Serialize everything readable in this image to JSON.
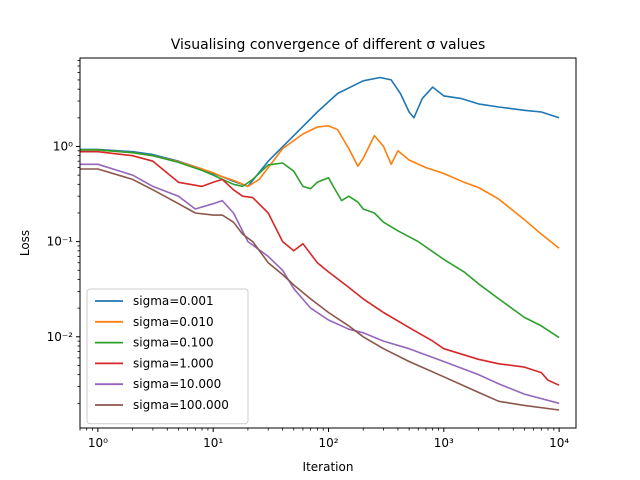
{
  "chart_data": {
    "type": "line",
    "title": "Visualising convergence of different σ values",
    "xlabel": "Iteration",
    "ylabel": "Loss",
    "x_scale": "log",
    "y_scale": "log",
    "xlim": [
      0.7,
      14000
    ],
    "ylim": [
      0.0011,
      8.5
    ],
    "xticks": [
      {
        "value": 1,
        "label": "10⁰"
      },
      {
        "value": 10,
        "label": "10¹"
      },
      {
        "value": 100,
        "label": "10²"
      },
      {
        "value": 1000,
        "label": "10³"
      },
      {
        "value": 10000,
        "label": "10⁴"
      }
    ],
    "yticks": [
      {
        "value": 0.01,
        "label": "10⁻²"
      },
      {
        "value": 0.1,
        "label": "10⁻¹"
      },
      {
        "value": 1,
        "label": "10⁰"
      }
    ],
    "grid": false,
    "legend_position": "lower-left",
    "series": [
      {
        "name": "sigma=0.001",
        "color": "#1f77b4",
        "x": [
          0.7,
          1,
          2,
          3,
          5,
          8,
          10,
          12,
          15,
          20,
          30,
          50,
          80,
          120,
          200,
          280,
          350,
          420,
          500,
          550,
          650,
          800,
          1000,
          1400,
          2000,
          3000,
          5000,
          7000,
          10000
        ],
        "y": [
          0.93,
          0.93,
          0.88,
          0.82,
          0.7,
          0.58,
          0.52,
          0.48,
          0.43,
          0.38,
          0.7,
          1.3,
          2.3,
          3.6,
          4.9,
          5.3,
          5.0,
          3.6,
          2.3,
          2.0,
          3.2,
          4.2,
          3.4,
          3.2,
          2.8,
          2.6,
          2.4,
          2.3,
          2.0
        ]
      },
      {
        "name": "sigma=0.010",
        "color": "#ff7f0e",
        "x": [
          0.7,
          1,
          2,
          3,
          5,
          8,
          10,
          12,
          15,
          20,
          25,
          30,
          40,
          60,
          80,
          100,
          120,
          150,
          180,
          200,
          250,
          300,
          350,
          400,
          500,
          700,
          1000,
          1500,
          2000,
          3000,
          5000,
          7000,
          10000
        ],
        "y": [
          0.92,
          0.92,
          0.86,
          0.8,
          0.69,
          0.58,
          0.53,
          0.48,
          0.44,
          0.38,
          0.45,
          0.6,
          0.95,
          1.35,
          1.6,
          1.65,
          1.5,
          0.95,
          0.62,
          0.75,
          1.3,
          1.0,
          0.65,
          0.9,
          0.72,
          0.6,
          0.52,
          0.42,
          0.37,
          0.28,
          0.17,
          0.12,
          0.085
        ]
      },
      {
        "name": "sigma=0.100",
        "color": "#2ca02c",
        "x": [
          0.7,
          1,
          2,
          3,
          5,
          8,
          10,
          12,
          15,
          18,
          22,
          30,
          40,
          50,
          60,
          70,
          80,
          100,
          110,
          130,
          150,
          180,
          200,
          250,
          300,
          400,
          600,
          1000,
          1500,
          2000,
          3000,
          5000,
          7000,
          10000
        ],
        "y": [
          0.92,
          0.92,
          0.86,
          0.8,
          0.68,
          0.56,
          0.5,
          0.45,
          0.4,
          0.38,
          0.45,
          0.64,
          0.67,
          0.55,
          0.38,
          0.36,
          0.42,
          0.47,
          0.38,
          0.27,
          0.3,
          0.26,
          0.22,
          0.2,
          0.16,
          0.13,
          0.1,
          0.065,
          0.048,
          0.036,
          0.025,
          0.016,
          0.013,
          0.0098
        ]
      },
      {
        "name": "sigma=1.000",
        "color": "#d62728",
        "x": [
          0.7,
          1,
          2,
          3,
          5,
          8,
          10,
          12,
          15,
          18,
          22,
          30,
          40,
          50,
          60,
          80,
          100,
          150,
          200,
          300,
          500,
          800,
          1000,
          2000,
          3000,
          5000,
          7000,
          8000,
          10000
        ],
        "y": [
          0.88,
          0.88,
          0.8,
          0.7,
          0.42,
          0.38,
          0.42,
          0.45,
          0.35,
          0.3,
          0.29,
          0.2,
          0.1,
          0.08,
          0.095,
          0.06,
          0.048,
          0.033,
          0.025,
          0.018,
          0.0125,
          0.009,
          0.0075,
          0.0058,
          0.0052,
          0.0048,
          0.0042,
          0.0035,
          0.0031
        ]
      },
      {
        "name": "sigma=10.000",
        "color": "#9467bd",
        "x": [
          0.7,
          1,
          2,
          3,
          5,
          7,
          10,
          12,
          15,
          20,
          30,
          40,
          50,
          70,
          100,
          150,
          200,
          300,
          500,
          1000,
          2000,
          3000,
          5000,
          10000
        ],
        "y": [
          0.65,
          0.65,
          0.5,
          0.38,
          0.3,
          0.22,
          0.25,
          0.27,
          0.2,
          0.1,
          0.07,
          0.05,
          0.032,
          0.02,
          0.015,
          0.012,
          0.011,
          0.009,
          0.0075,
          0.0055,
          0.004,
          0.0032,
          0.0025,
          0.002
        ]
      },
      {
        "name": "sigma=100.000",
        "color": "#8c564b",
        "x": [
          0.7,
          1,
          2,
          3,
          5,
          7,
          10,
          12,
          15,
          18,
          22,
          30,
          40,
          50,
          70,
          100,
          150,
          200,
          300,
          500,
          1000,
          2000,
          3000,
          5000,
          10000
        ],
        "y": [
          0.58,
          0.58,
          0.45,
          0.35,
          0.25,
          0.2,
          0.19,
          0.19,
          0.16,
          0.12,
          0.1,
          0.06,
          0.045,
          0.035,
          0.025,
          0.018,
          0.013,
          0.01,
          0.0075,
          0.0055,
          0.0038,
          0.0026,
          0.0021,
          0.0019,
          0.0017
        ]
      }
    ]
  }
}
